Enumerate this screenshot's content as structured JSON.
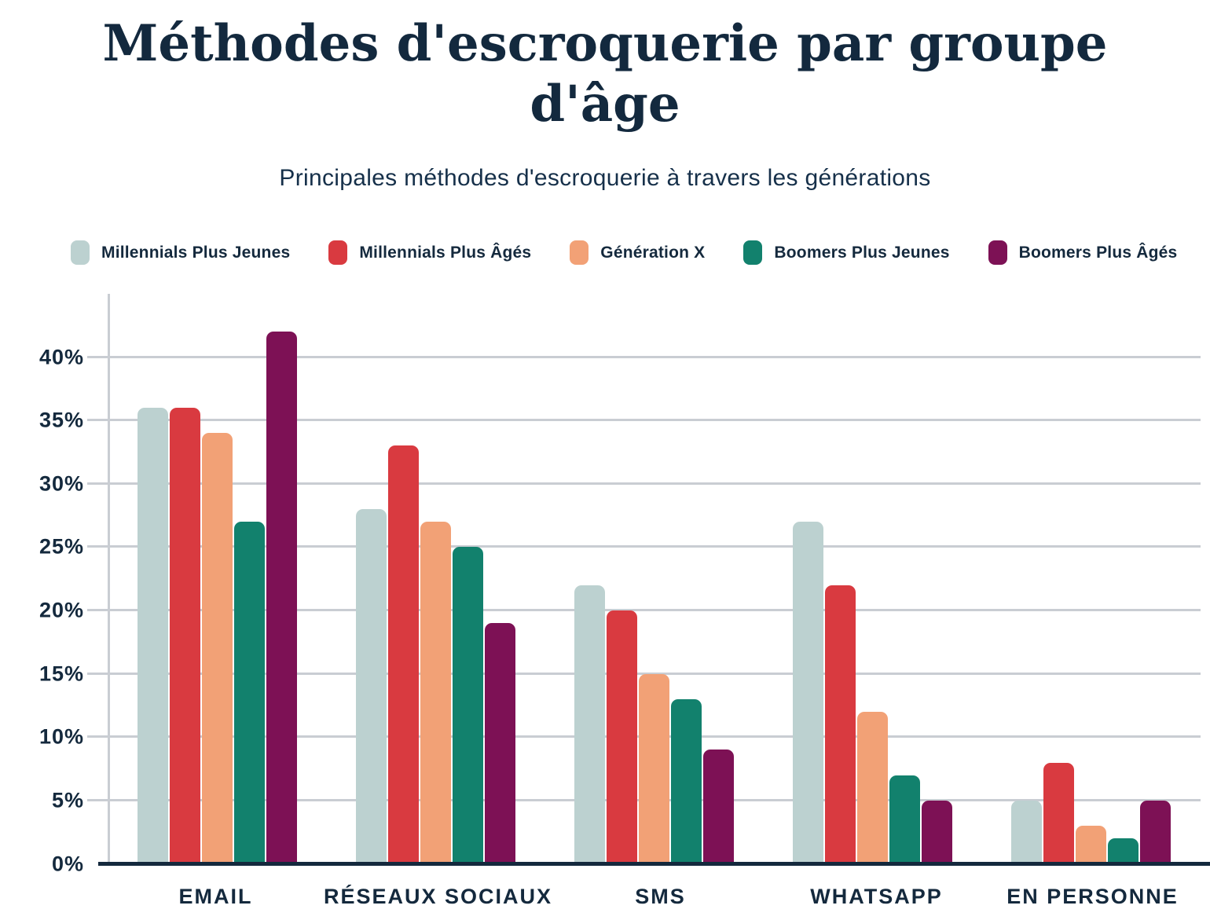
{
  "header": {
    "title": "Méthodes d'escroquerie par groupe d'âge",
    "subtitle": "Principales méthodes d'escroquerie à travers les générations"
  },
  "colors": {
    "text": "#14293d",
    "gridline": "#c9cdd3",
    "axis": "#14293d",
    "background": "#ffffff"
  },
  "chart_data": {
    "type": "bar",
    "title": "Méthodes d'escroquerie par groupe d'âge",
    "subtitle": "Principales méthodes d'escroquerie à travers les générations",
    "categories": [
      "EMAIL",
      "RÉSEAUX SOCIAUX",
      "SMS",
      "WHATSAPP",
      "EN PERSONNE"
    ],
    "series": [
      {
        "name": "Millennials Plus Jeunes",
        "color": "#bcd1d0",
        "values": [
          36,
          28,
          22,
          27,
          5
        ]
      },
      {
        "name": "Millennials Plus Âgés",
        "color": "#d93a40",
        "values": [
          36,
          33,
          20,
          22,
          8
        ]
      },
      {
        "name": "Génération X",
        "color": "#f2a176",
        "values": [
          34,
          27,
          15,
          12,
          3
        ]
      },
      {
        "name": "Boomers Plus Jeunes",
        "color": "#12816d",
        "values": [
          27,
          25,
          13,
          7,
          2
        ]
      },
      {
        "name": "Boomers Plus Âgés",
        "color": "#7d1155",
        "values": [
          42,
          19,
          9,
          5,
          5
        ]
      }
    ],
    "ylabel": "",
    "xlabel": "",
    "y_ticks": [
      "0%",
      "5%",
      "10%",
      "15%",
      "20%",
      "25%",
      "30%",
      "35%",
      "40%"
    ],
    "y_tick_values": [
      0,
      5,
      10,
      15,
      20,
      25,
      30,
      35,
      40
    ],
    "ylim": [
      0,
      45
    ],
    "grid": true,
    "legend_position": "top"
  }
}
